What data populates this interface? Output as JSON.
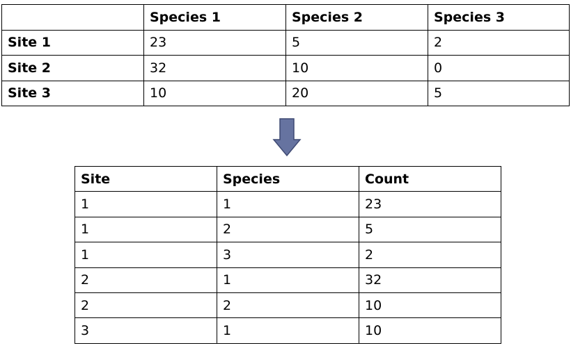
{
  "wide_table": {
    "headers": [
      "",
      "Species 1",
      "Species 2",
      "Species 3"
    ],
    "rows": [
      {
        "site": "Site 1",
        "values": [
          "23",
          "5",
          "2"
        ]
      },
      {
        "site": "Site 2",
        "values": [
          "32",
          "10",
          "0"
        ]
      },
      {
        "site": "Site 3",
        "values": [
          "10",
          "20",
          "5"
        ]
      }
    ]
  },
  "arrow": {
    "icon": "arrow-down-icon",
    "color": "#6673a0",
    "border_color": "#3f4a73"
  },
  "long_table": {
    "headers": [
      "Site",
      "Species",
      "Count"
    ],
    "rows": [
      [
        "1",
        "1",
        "23"
      ],
      [
        "1",
        "2",
        "5"
      ],
      [
        "1",
        "3",
        "2"
      ],
      [
        "2",
        "1",
        "32"
      ],
      [
        "2",
        "2",
        "10"
      ],
      [
        "3",
        "1",
        "10"
      ]
    ]
  }
}
